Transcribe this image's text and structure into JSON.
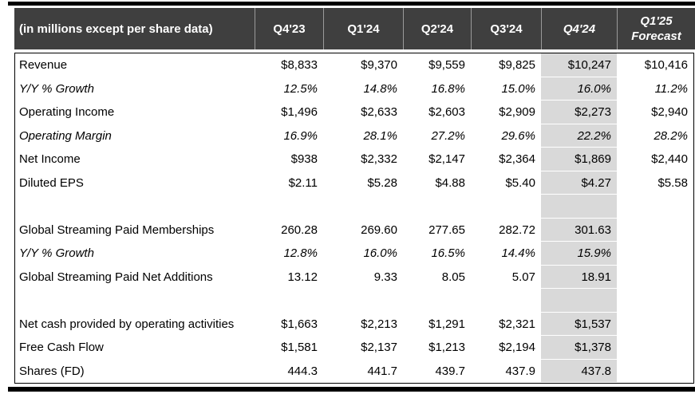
{
  "colors": {
    "header_bg": "#3f3f3f",
    "header_text": "#ffffff",
    "header_divider": "#9a9a9a",
    "highlight_column_bg": "#d9d9d9",
    "table_border": "#000000",
    "body_text": "#000000"
  },
  "chart_data": {
    "type": "table",
    "unit_note": "(in millions except per share data)",
    "highlighted_column": "Q4'24",
    "columns": [
      {
        "label": "Q4'23",
        "italic": false,
        "highlight": false
      },
      {
        "label": "Q1'24",
        "italic": false,
        "highlight": false
      },
      {
        "label": "Q2'24",
        "italic": false,
        "highlight": false
      },
      {
        "label": "Q3'24",
        "italic": false,
        "highlight": false
      },
      {
        "label": "Q4'24",
        "italic": true,
        "highlight": true
      },
      {
        "label": "Q1'25 Forecast",
        "italic": true,
        "highlight": false
      }
    ],
    "rows": [
      {
        "label": "Revenue",
        "italic": false,
        "values": [
          "$8,833",
          "$9,370",
          "$9,559",
          "$9,825",
          "$10,247",
          "$10,416"
        ]
      },
      {
        "label": "Y/Y % Growth",
        "italic": true,
        "values": [
          "12.5%",
          "14.8%",
          "16.8%",
          "15.0%",
          "16.0%",
          "11.2%"
        ]
      },
      {
        "label": "Operating Income",
        "italic": false,
        "values": [
          "$1,496",
          "$2,633",
          "$2,603",
          "$2,909",
          "$2,273",
          "$2,940"
        ]
      },
      {
        "label": "Operating Margin",
        "italic": true,
        "values": [
          "16.9%",
          "28.1%",
          "27.2%",
          "29.6%",
          "22.2%",
          "28.2%"
        ]
      },
      {
        "label": "Net Income",
        "italic": false,
        "values": [
          "$938",
          "$2,332",
          "$2,147",
          "$2,364",
          "$1,869",
          "$2,440"
        ]
      },
      {
        "label": "Diluted EPS",
        "italic": false,
        "values": [
          "$2.11",
          "$5.28",
          "$4.88",
          "$5.40",
          "$4.27",
          "$5.58"
        ]
      },
      {
        "label": "",
        "italic": false,
        "values": [
          "",
          "",
          "",
          "",
          "",
          ""
        ]
      },
      {
        "label": "Global Streaming Paid Memberships",
        "italic": false,
        "values": [
          "260.28",
          "269.60",
          "277.65",
          "282.72",
          "301.63",
          ""
        ]
      },
      {
        "label": "Y/Y % Growth",
        "italic": true,
        "values": [
          "12.8%",
          "16.0%",
          "16.5%",
          "14.4%",
          "15.9%",
          ""
        ]
      },
      {
        "label": "Global Streaming Paid Net Additions",
        "italic": false,
        "values": [
          "13.12",
          "9.33",
          "8.05",
          "5.07",
          "18.91",
          ""
        ]
      },
      {
        "label": "",
        "italic": false,
        "values": [
          "",
          "",
          "",
          "",
          "",
          ""
        ]
      },
      {
        "label": "Net cash provided by operating activities",
        "italic": false,
        "values": [
          "$1,663",
          "$2,213",
          "$1,291",
          "$2,321",
          "$1,537",
          ""
        ]
      },
      {
        "label": "Free Cash Flow",
        "italic": false,
        "values": [
          "$1,581",
          "$2,137",
          "$1,213",
          "$2,194",
          "$1,378",
          ""
        ]
      },
      {
        "label": "Shares (FD)",
        "italic": false,
        "values": [
          "444.3",
          "441.7",
          "439.7",
          "437.9",
          "437.8",
          ""
        ]
      }
    ]
  }
}
